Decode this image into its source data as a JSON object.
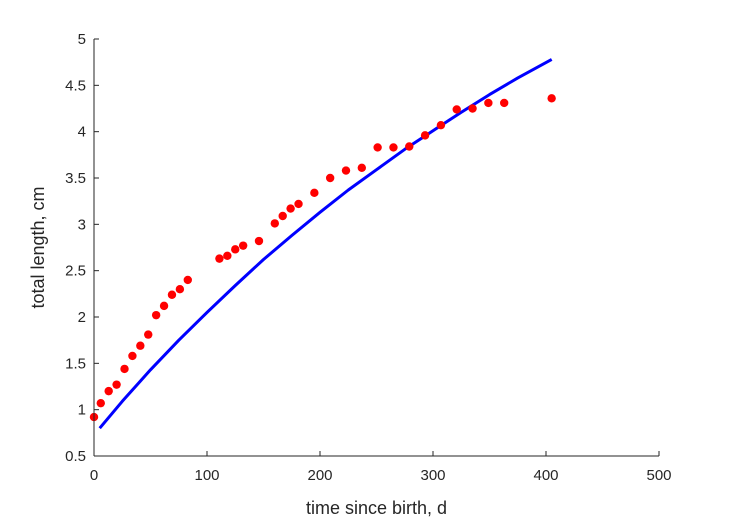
{
  "chart_data": {
    "type": "scatter",
    "xlabel": "time since birth, d",
    "ylabel": "total length, cm",
    "xlim": [
      0,
      500
    ],
    "ylim": [
      0.5,
      5
    ],
    "xticks": [
      0,
      100,
      200,
      300,
      400,
      500
    ],
    "yticks": [
      0.5,
      1,
      1.5,
      2,
      2.5,
      3,
      3.5,
      4,
      4.5,
      5
    ],
    "xtick_labels": [
      "0",
      "100",
      "200",
      "300",
      "400",
      "500"
    ],
    "ytick_labels": [
      "0.5",
      "1",
      "1.5",
      "2",
      "2.5",
      "3",
      "3.5",
      "4",
      "4.5",
      "5"
    ],
    "grid": false,
    "colors": {
      "points": "#ff0000",
      "curve": "#0000ff",
      "axis": "#262626"
    },
    "series": [
      {
        "kind": "points",
        "x": [
          0,
          6,
          13,
          20,
          27,
          34,
          41,
          48,
          55,
          62,
          69,
          76,
          83,
          111,
          118,
          125,
          132,
          146,
          160,
          167,
          174,
          181,
          195,
          209,
          223,
          237,
          251,
          265,
          279,
          293,
          307,
          321,
          335,
          349,
          363,
          405
        ],
        "y": [
          0.92,
          1.07,
          1.2,
          1.27,
          1.44,
          1.58,
          1.69,
          1.81,
          2.02,
          2.12,
          2.24,
          2.3,
          2.4,
          2.63,
          2.66,
          2.73,
          2.77,
          2.82,
          3.01,
          3.09,
          3.17,
          3.22,
          3.34,
          3.5,
          3.58,
          3.61,
          3.83,
          3.83,
          3.84,
          3.96,
          4.07,
          4.24,
          4.25,
          4.31,
          4.31,
          4.36
        ]
      },
      {
        "kind": "line",
        "x": [
          5,
          25,
          50,
          75,
          100,
          125,
          150,
          175,
          200,
          225,
          250,
          275,
          300,
          325,
          350,
          375,
          405
        ],
        "y": [
          0.8,
          1.09,
          1.43,
          1.75,
          2.05,
          2.34,
          2.62,
          2.88,
          3.13,
          3.37,
          3.59,
          3.81,
          4.01,
          4.21,
          4.4,
          4.58,
          4.78
        ]
      }
    ]
  }
}
